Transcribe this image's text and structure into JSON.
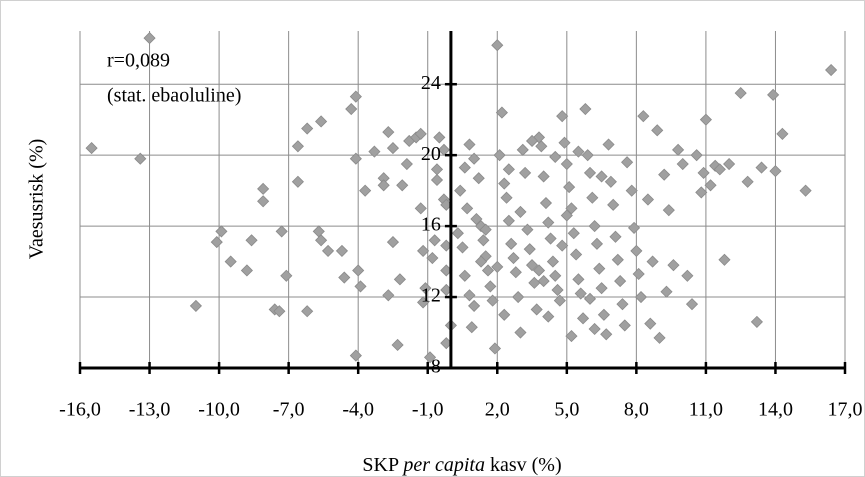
{
  "chart_data": {
    "type": "scatter",
    "title_lines": [
      "r=0,089",
      "(stat. ebaoluline)"
    ],
    "ylabel": "Vaesusrisk (%)",
    "xlabel_parts": [
      "SKP",
      "per capita",
      "kasv (%)"
    ],
    "color": "#a0a0a0",
    "grid": true,
    "xlim": [
      -16,
      17
    ],
    "ylim": [
      8,
      27
    ],
    "xticks": [
      {
        "value": -16,
        "label": "-16,0"
      },
      {
        "value": -13,
        "label": "-13,0"
      },
      {
        "value": -10,
        "label": "-10,0"
      },
      {
        "value": -7,
        "label": "-7,0"
      },
      {
        "value": -4,
        "label": "-4,0"
      },
      {
        "value": -1,
        "label": "-1,0"
      },
      {
        "value": 2,
        "label": "2,0"
      },
      {
        "value": 5,
        "label": "5,0"
      },
      {
        "value": 8,
        "label": "8,0"
      },
      {
        "value": 11,
        "label": "11,0"
      },
      {
        "value": 14,
        "label": "14,0"
      },
      {
        "value": 17,
        "label": "17,0"
      }
    ],
    "yticks": [
      8,
      12,
      16,
      20,
      24
    ],
    "x": [
      -15.5,
      -13.4,
      -13.0,
      -11.0,
      -10.1,
      -9.9,
      -9.5,
      -8.8,
      -8.6,
      -8.1,
      -8.1,
      -7.6,
      -7.3,
      -7.1,
      -6.6,
      -6.6,
      -6.2,
      -5.6,
      -5.7,
      -5.6,
      -5.3,
      -7.4,
      -6.2,
      -4.7,
      -4.6,
      -4.1,
      -4.3,
      -4.1,
      -4.1,
      -4.0,
      -3.9,
      -3.7,
      -3.3,
      -2.9,
      -2.9,
      -2.7,
      -2.5,
      -2.5,
      -2.7,
      -2.2,
      -2.3,
      -2.1,
      -1.9,
      -1.8,
      -1.5,
      -1.3,
      -1.3,
      -1.2,
      -1.1,
      -1.2,
      -0.9,
      -0.8,
      -0.7,
      -0.6,
      -0.6,
      -0.5,
      -0.3,
      -0.3,
      -0.2,
      -0.2,
      -0.2,
      -0.2,
      -0.2,
      0.0,
      0.3,
      0.5,
      0.6,
      0.8,
      0.9,
      1.0,
      0.4,
      0.6,
      0.8,
      1.0,
      1.2,
      1.3,
      1.4,
      1.5,
      1.6,
      1.7,
      1.8,
      1.9,
      2.0,
      2.2,
      2.1,
      2.3,
      2.4,
      2.5,
      2.6,
      2.7,
      2.8,
      2.9,
      3.0,
      3.1,
      3.2,
      3.3,
      3.4,
      3.5,
      3.6,
      3.7,
      3.8,
      3.9,
      4.0,
      4.1,
      4.2,
      4.3,
      4.4,
      4.5,
      4.6,
      4.7,
      4.8,
      4.9,
      5.0,
      5.1,
      5.2,
      5.3,
      5.4,
      5.5,
      5.6,
      5.7,
      5.8,
      5.9,
      6.0,
      6.1,
      6.2,
      6.3,
      6.4,
      6.5,
      6.6,
      6.7,
      6.8,
      6.9,
      7.0,
      7.1,
      7.2,
      7.3,
      7.4,
      7.5,
      7.6,
      7.8,
      7.9,
      8.0,
      8.1,
      8.2,
      0.7,
      1.1,
      2.0,
      3.0,
      4.0,
      5.0,
      6.0,
      4.5,
      3.5,
      2.5,
      1.5,
      5.5,
      6.5,
      4.2,
      5.2,
      6.2,
      2.3,
      1.3,
      3.8,
      4.8,
      8.3,
      8.5,
      8.7,
      8.9,
      9.0,
      9.2,
      9.4,
      9.6,
      9.8,
      10.0,
      10.2,
      10.4,
      10.6,
      10.8,
      11.0,
      11.2,
      11.4,
      11.8,
      12.0,
      12.5,
      12.8,
      13.2,
      13.4,
      13.9,
      14.0,
      14.3,
      15.3,
      16.4,
      9.3,
      8.6,
      10.9,
      11.6
    ],
    "y": [
      20.4,
      19.8,
      26.6,
      11.5,
      15.1,
      15.7,
      14.0,
      13.5,
      15.2,
      18.1,
      17.4,
      11.3,
      15.7,
      13.2,
      18.5,
      20.5,
      21.5,
      21.9,
      15.7,
      15.2,
      14.6,
      11.2,
      11.2,
      14.6,
      13.1,
      23.3,
      22.6,
      19.8,
      8.7,
      13.5,
      12.6,
      18.0,
      20.2,
      18.7,
      18.3,
      21.3,
      20.4,
      15.1,
      12.1,
      13.0,
      9.3,
      18.3,
      19.5,
      20.8,
      21.0,
      21.2,
      17.0,
      14.6,
      12.5,
      11.7,
      8.6,
      14.2,
      15.2,
      19.2,
      18.6,
      21.0,
      20.3,
      17.5,
      17.2,
      14.9,
      13.5,
      12.4,
      9.4,
      10.4,
      15.6,
      14.8,
      13.2,
      12.1,
      10.3,
      11.5,
      18.0,
      19.3,
      20.6,
      19.8,
      18.7,
      16.0,
      15.2,
      14.3,
      13.5,
      12.6,
      11.8,
      9.1,
      26.2,
      22.4,
      20.0,
      18.4,
      17.6,
      16.3,
      15.0,
      14.2,
      13.4,
      12.0,
      10.0,
      20.3,
      19.0,
      15.8,
      14.7,
      13.8,
      12.8,
      11.3,
      21.0,
      20.5,
      18.8,
      17.3,
      16.2,
      15.3,
      14.0,
      13.2,
      12.4,
      11.8,
      22.2,
      20.7,
      19.5,
      18.2,
      17.0,
      15.6,
      14.4,
      13.0,
      12.2,
      10.8,
      22.6,
      20.0,
      19.0,
      17.6,
      16.0,
      15.0,
      13.6,
      12.5,
      11.0,
      9.9,
      20.6,
      18.5,
      17.2,
      15.4,
      14.1,
      12.9,
      11.6,
      10.4,
      19.6,
      18.0,
      15.9,
      14.6,
      13.3,
      12.0,
      17.0,
      16.4,
      13.7,
      16.8,
      12.9,
      16.6,
      11.9,
      19.9,
      20.8,
      19.2,
      15.8,
      20.2,
      18.8,
      10.9,
      9.8,
      10.2,
      11.0,
      14.0,
      13.5,
      14.9,
      22.2,
      17.5,
      14.0,
      21.4,
      9.7,
      18.9,
      16.9,
      13.8,
      20.3,
      19.5,
      13.2,
      11.6,
      20.0,
      17.9,
      22.0,
      18.3,
      19.4,
      14.1,
      19.5,
      23.5,
      18.5,
      10.6,
      19.3,
      23.4,
      19.1,
      21.2,
      18.0,
      24.8,
      12.3,
      10.5,
      19.0,
      19.2
    ]
  }
}
